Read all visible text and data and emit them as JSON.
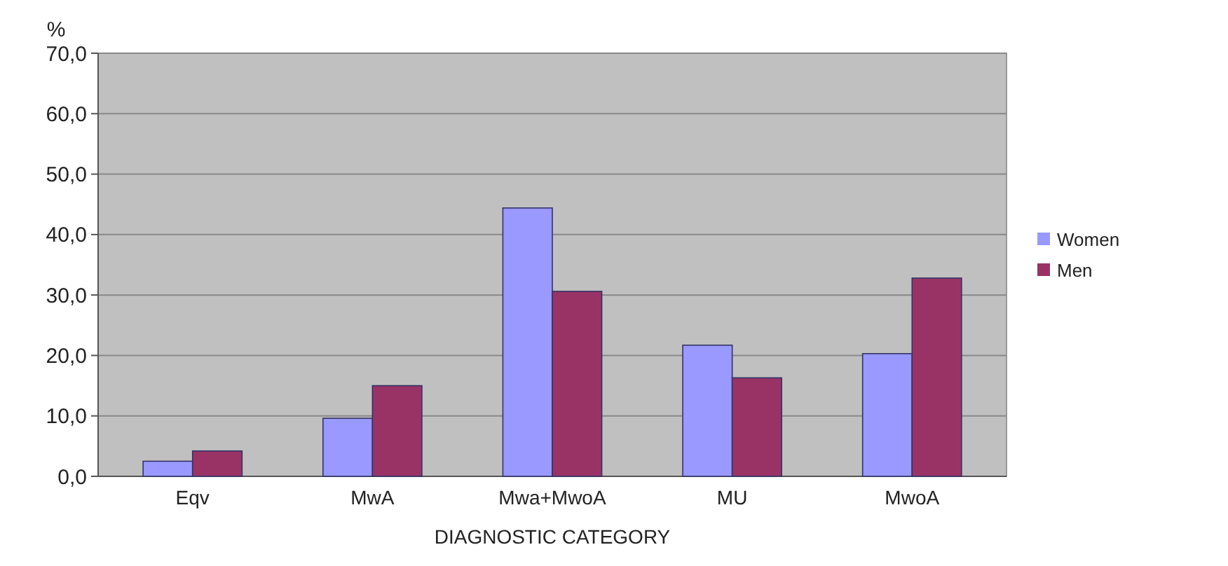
{
  "chart_data": {
    "type": "bar",
    "xlabel": "DIAGNOSTIC CATEGORY",
    "ylabel": "%",
    "categories": [
      "Eqv",
      "MwA",
      "Mwa+MwoA",
      "MU",
      "MwoA"
    ],
    "series": [
      {
        "name": "Women",
        "color": "#9999ff",
        "values": [
          2.5,
          9.6,
          44.4,
          21.7,
          20.3
        ]
      },
      {
        "name": "Men",
        "color": "#993366",
        "values": [
          4.2,
          15.0,
          30.6,
          16.3,
          32.8
        ]
      }
    ],
    "ylim": [
      0,
      70
    ],
    "yticks": [
      {
        "value": 0,
        "label": "0,0"
      },
      {
        "value": 10,
        "label": "10,0"
      },
      {
        "value": 20,
        "label": "20,0"
      },
      {
        "value": 30,
        "label": "30,0"
      },
      {
        "value": 40,
        "label": "40,0"
      },
      {
        "value": 50,
        "label": "50,0"
      },
      {
        "value": 60,
        "label": "60,0"
      },
      {
        "value": 70,
        "label": "70,0"
      }
    ],
    "grid": true,
    "legend": "right"
  }
}
